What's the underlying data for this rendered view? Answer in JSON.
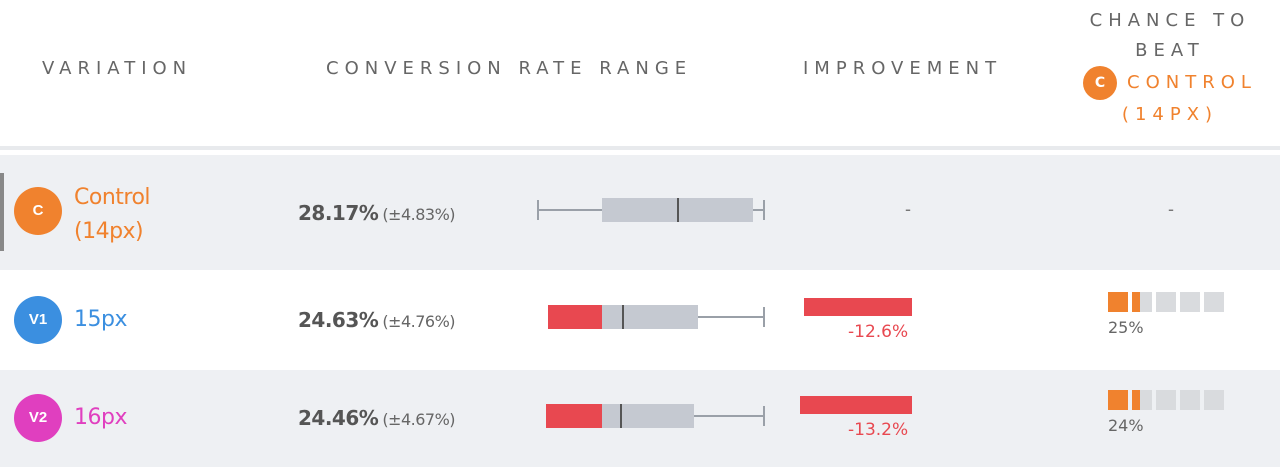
{
  "header": {
    "variation": "VARIATION",
    "range": "CONVERSION RATE RANGE",
    "improvement": "IMPROVEMENT",
    "chance_line1": "CHANCE TO",
    "chance_line2": "BEAT",
    "chance_badge": "C",
    "chance_target": "CONTROL",
    "chance_target_sub": "(14PX)"
  },
  "colors": {
    "orange": "#f0822e",
    "blue": "#3b8fe0",
    "pink": "#e03fbf",
    "red": "#e84850",
    "gray_box": "#c5c9d1"
  },
  "rows": [
    {
      "badge": "C",
      "name_line1": "Control",
      "name_line2": "(14px)",
      "rate": "28.17%",
      "margin": "(±4.83%)",
      "improvement": "-",
      "chance": "-",
      "chance_fraction": null,
      "improvement_value": null
    },
    {
      "badge": "V1",
      "name_line1": "15px",
      "rate": "24.63%",
      "margin": "(±4.76%)",
      "improvement": "-12.6%",
      "improvement_value": -12.6,
      "chance": "25%",
      "chance_fraction": 0.25
    },
    {
      "badge": "V2",
      "name_line1": "16px",
      "rate": "24.46%",
      "margin": "(±4.67%)",
      "improvement": "-13.2%",
      "improvement_value": -13.2,
      "chance": "24%",
      "chance_fraction": 0.24
    }
  ]
}
